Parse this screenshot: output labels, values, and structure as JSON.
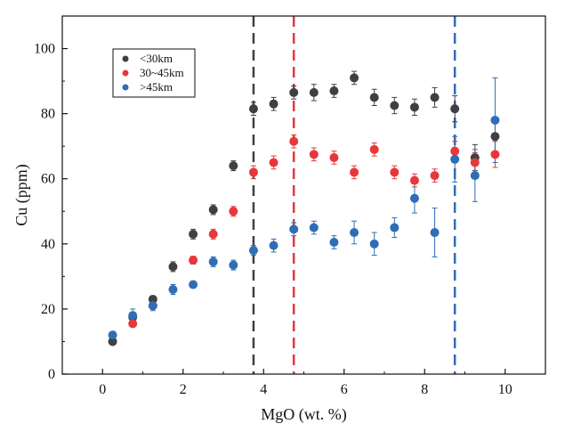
{
  "chart_data": {
    "type": "scatter",
    "xlabel": "MgO (wt. %)",
    "ylabel": "Cu (ppm)",
    "xlim": [
      -1,
      11
    ],
    "ylim": [
      0,
      110
    ],
    "x_ticks": [
      0,
      2,
      4,
      6,
      8,
      10
    ],
    "y_ticks": [
      0,
      20,
      40,
      60,
      80,
      100
    ],
    "legend_position": "top-left",
    "grid": false,
    "error_bars": true,
    "series": [
      {
        "name": "<30km",
        "color": "#404040",
        "points": [
          {
            "x": 0.25,
            "y": 10,
            "err": 0.8
          },
          {
            "x": 0.75,
            "y": 17.5,
            "err": 1
          },
          {
            "x": 1.25,
            "y": 23,
            "err": 1
          },
          {
            "x": 1.75,
            "y": 33,
            "err": 1.5
          },
          {
            "x": 2.25,
            "y": 43,
            "err": 1.5
          },
          {
            "x": 2.75,
            "y": 50.5,
            "err": 1.5
          },
          {
            "x": 3.25,
            "y": 64,
            "err": 1.5
          },
          {
            "x": 3.75,
            "y": 81.5,
            "err": 2
          },
          {
            "x": 4.25,
            "y": 83,
            "err": 2
          },
          {
            "x": 4.75,
            "y": 86.5,
            "err": 2
          },
          {
            "x": 5.25,
            "y": 86.5,
            "err": 2.5
          },
          {
            "x": 5.75,
            "y": 87,
            "err": 2
          },
          {
            "x": 6.25,
            "y": 91,
            "err": 2
          },
          {
            "x": 6.75,
            "y": 85,
            "err": 2.5
          },
          {
            "x": 7.25,
            "y": 82.5,
            "err": 2.5
          },
          {
            "x": 7.75,
            "y": 82,
            "err": 2.5
          },
          {
            "x": 8.25,
            "y": 85,
            "err": 3
          },
          {
            "x": 8.75,
            "y": 81.5,
            "err": 4
          },
          {
            "x": 9.25,
            "y": 66.5,
            "err": 4
          },
          {
            "x": 9.75,
            "y": 73,
            "err": 5
          }
        ]
      },
      {
        "name": "30~45km",
        "color": "#e8373a",
        "points": [
          {
            "x": 0.75,
            "y": 15.5,
            "err": 1
          },
          {
            "x": 1.25,
            "y": 21,
            "err": 1
          },
          {
            "x": 2.25,
            "y": 35,
            "err": 1.2
          },
          {
            "x": 2.75,
            "y": 43,
            "err": 1.5
          },
          {
            "x": 3.25,
            "y": 50,
            "err": 1.5
          },
          {
            "x": 3.75,
            "y": 62,
            "err": 2
          },
          {
            "x": 4.25,
            "y": 65,
            "err": 2
          },
          {
            "x": 4.75,
            "y": 71.5,
            "err": 2
          },
          {
            "x": 5.25,
            "y": 67.5,
            "err": 2
          },
          {
            "x": 5.75,
            "y": 66.5,
            "err": 2
          },
          {
            "x": 6.25,
            "y": 62,
            "err": 2
          },
          {
            "x": 6.75,
            "y": 69,
            "err": 2
          },
          {
            "x": 7.25,
            "y": 62,
            "err": 2
          },
          {
            "x": 7.75,
            "y": 59.5,
            "err": 2
          },
          {
            "x": 8.25,
            "y": 61,
            "err": 2
          },
          {
            "x": 8.75,
            "y": 68.5,
            "err": 3
          },
          {
            "x": 9.25,
            "y": 65,
            "err": 3
          },
          {
            "x": 9.75,
            "y": 67.5,
            "err": 4
          }
        ]
      },
      {
        "name": ">45km",
        "color": "#2f6db5",
        "points": [
          {
            "x": 0.25,
            "y": 12,
            "err": 1
          },
          {
            "x": 0.75,
            "y": 18,
            "err": 2
          },
          {
            "x": 1.25,
            "y": 21,
            "err": 1.5
          },
          {
            "x": 1.75,
            "y": 26,
            "err": 1.5
          },
          {
            "x": 2.25,
            "y": 27.5,
            "err": 1
          },
          {
            "x": 2.75,
            "y": 34.5,
            "err": 1.5
          },
          {
            "x": 3.25,
            "y": 33.5,
            "err": 1.5
          },
          {
            "x": 3.75,
            "y": 38,
            "err": 1.5
          },
          {
            "x": 4.25,
            "y": 39.5,
            "err": 2
          },
          {
            "x": 4.75,
            "y": 44.5,
            "err": 2
          },
          {
            "x": 5.25,
            "y": 45,
            "err": 2
          },
          {
            "x": 5.75,
            "y": 40.5,
            "err": 2
          },
          {
            "x": 6.25,
            "y": 43.5,
            "err": 3.5
          },
          {
            "x": 6.75,
            "y": 40,
            "err": 3.5
          },
          {
            "x": 7.25,
            "y": 45,
            "err": 3
          },
          {
            "x": 7.75,
            "y": 54,
            "err": 4.5
          },
          {
            "x": 8.25,
            "y": 43.5,
            "err": 7.5
          },
          {
            "x": 8.75,
            "y": 66,
            "err": 7
          },
          {
            "x": 9.25,
            "y": 61,
            "err": 8
          },
          {
            "x": 9.75,
            "y": 78,
            "err": 13
          }
        ]
      }
    ],
    "vertical_lines": [
      {
        "x": 3.75,
        "color": "#404040",
        "style": "dashed"
      },
      {
        "x": 4.75,
        "color": "#e8373a",
        "style": "dashed"
      },
      {
        "x": 8.75,
        "color": "#2f6db5",
        "style": "dashed"
      }
    ]
  }
}
